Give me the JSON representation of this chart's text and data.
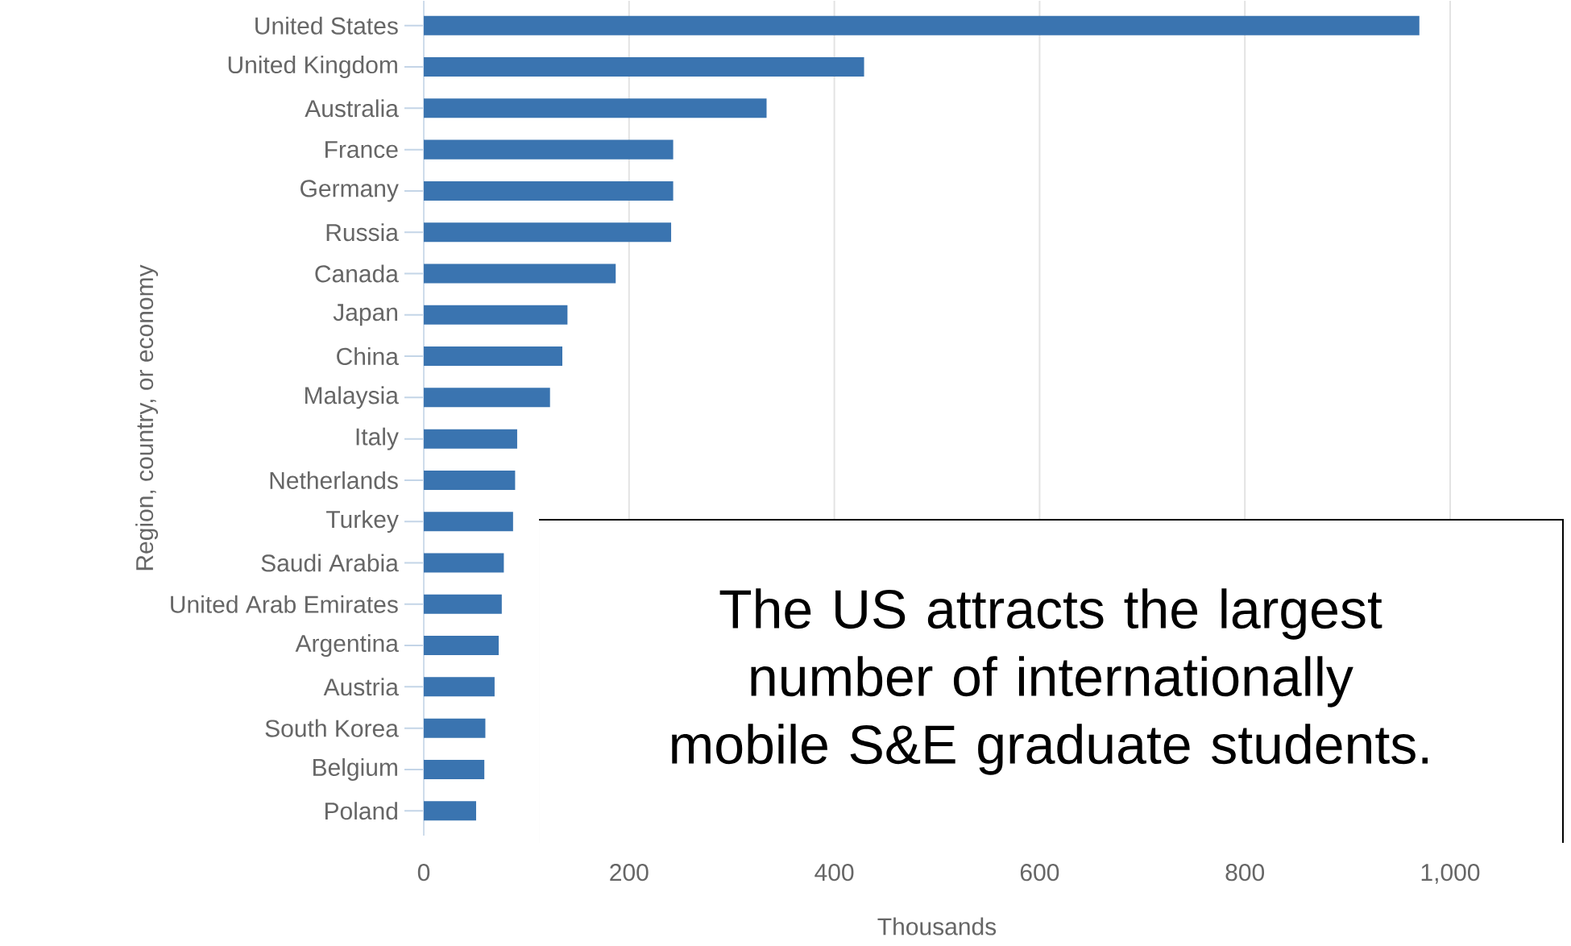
{
  "chart_data": {
    "type": "bar",
    "orientation": "horizontal",
    "xlabel": "Thousands",
    "ylabel": "Region, country, or economy",
    "categories": [
      "United States",
      "United Kingdom",
      "Australia",
      "France",
      "Germany",
      "Russia",
      "Canada",
      "Japan",
      "China",
      "Malaysia",
      "Italy",
      "Netherlands",
      "Turkey",
      "Saudi Arabia",
      "United Arab Emirates",
      "Argentina",
      "Austria",
      "South Korea",
      "Belgium",
      "Poland"
    ],
    "values": [
      970,
      429,
      334,
      243,
      243,
      241,
      187,
      140,
      135,
      123,
      91,
      89,
      87,
      78,
      76,
      73,
      69,
      60,
      59,
      51
    ],
    "color": "#3a74b0",
    "xlim": [
      0,
      1000
    ],
    "xticks": [
      0,
      200,
      400,
      600,
      800,
      {
        "value": 1000,
        "label": "1,000"
      }
    ],
    "grid": "x",
    "annotations": [
      "The US attracts the largest number of internationally mobile S&E graduate students."
    ]
  }
}
